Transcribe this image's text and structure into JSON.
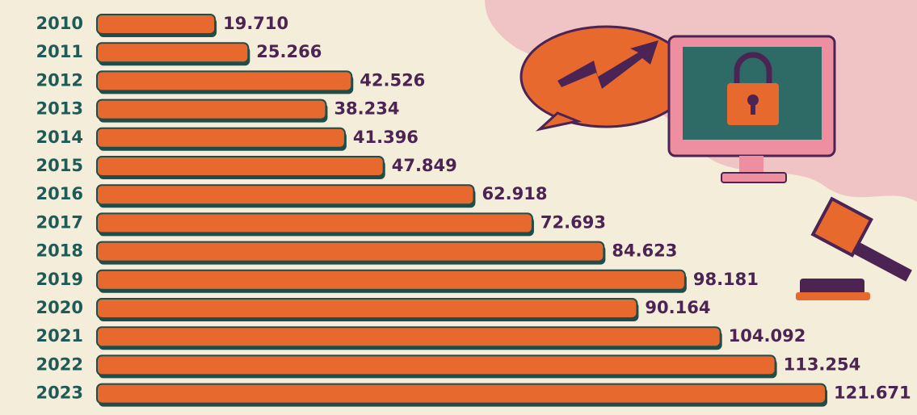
{
  "chart_data": {
    "type": "bar",
    "orientation": "horizontal",
    "categories": [
      "2010",
      "2011",
      "2012",
      "2013",
      "2014",
      "2015",
      "2016",
      "2017",
      "2018",
      "2019",
      "2020",
      "2021",
      "2022",
      "2023"
    ],
    "values": [
      19710,
      25266,
      42526,
      38234,
      41396,
      47849,
      62918,
      72693,
      84623,
      98181,
      90164,
      104092,
      113254,
      121671
    ],
    "value_labels": [
      "19.710",
      "25.266",
      "42.526",
      "38.234",
      "41.396",
      "47.849",
      "62.918",
      "72.693",
      "84.623",
      "98.181",
      "90.164",
      "104.092",
      "113.254",
      "121.671"
    ],
    "color": "#e8692e"
  }
}
